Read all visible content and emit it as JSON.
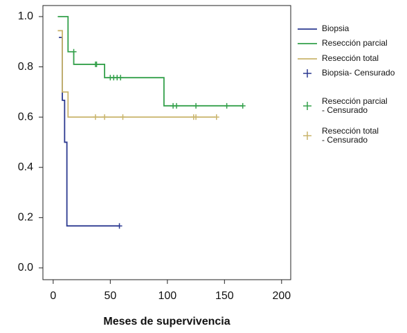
{
  "chart_data": {
    "type": "step",
    "x_label": "Meses de supervivencia",
    "xlim": [
      -9,
      208
    ],
    "ylim": [
      -0.047,
      1.044
    ],
    "xticks": [
      0,
      50,
      100,
      150,
      200
    ],
    "yticks": [
      {
        "value": 0,
        "label": "0.0"
      },
      {
        "value": 0.2,
        "label": "0.2"
      },
      {
        "value": 0.4,
        "label": "0.4"
      },
      {
        "value": 0.6,
        "label": "0.6"
      },
      {
        "value": 0.8,
        "label": "0.8"
      },
      {
        "value": 1.0,
        "label": "1.0"
      }
    ],
    "series": [
      {
        "name": "Biopsia",
        "color": "#2b3990",
        "style": "step",
        "x": [
          5,
          8,
          10,
          12,
          58
        ],
        "values": [
          0.917,
          0.667,
          0.5,
          0.167,
          0.167
        ]
      },
      {
        "name": "Resección parcial",
        "color": "#33a04a",
        "style": "step",
        "x": [
          4,
          13,
          18,
          45,
          97,
          166
        ],
        "values": [
          1.0,
          0.86,
          0.81,
          0.757,
          0.645,
          0.645
        ]
      },
      {
        "name": "Resección total",
        "color": "#c9b46b",
        "style": "step",
        "x": [
          4,
          8,
          13,
          142
        ],
        "values": [
          0.944,
          0.7,
          0.6,
          0.6
        ]
      },
      {
        "name": "Biopsia- Censurado",
        "color": "#2b3990",
        "style": "marker",
        "x": [
          58
        ],
        "values": [
          0.167
        ]
      },
      {
        "name": "Resección parcial - Censurado",
        "color": "#33a04a",
        "style": "marker",
        "x": [
          18,
          37,
          38,
          50,
          53,
          56,
          59,
          105,
          108,
          125,
          152,
          166
        ],
        "values": [
          0.86,
          0.81,
          0.81,
          0.757,
          0.757,
          0.757,
          0.757,
          0.645,
          0.645,
          0.645,
          0.645,
          0.645
        ]
      },
      {
        "name": "Resección total - Censurado",
        "color": "#c9b46b",
        "style": "marker",
        "x": [
          37,
          45,
          61,
          123,
          125,
          143
        ],
        "values": [
          0.6,
          0.6,
          0.6,
          0.6,
          0.6,
          0.6
        ]
      }
    ]
  }
}
